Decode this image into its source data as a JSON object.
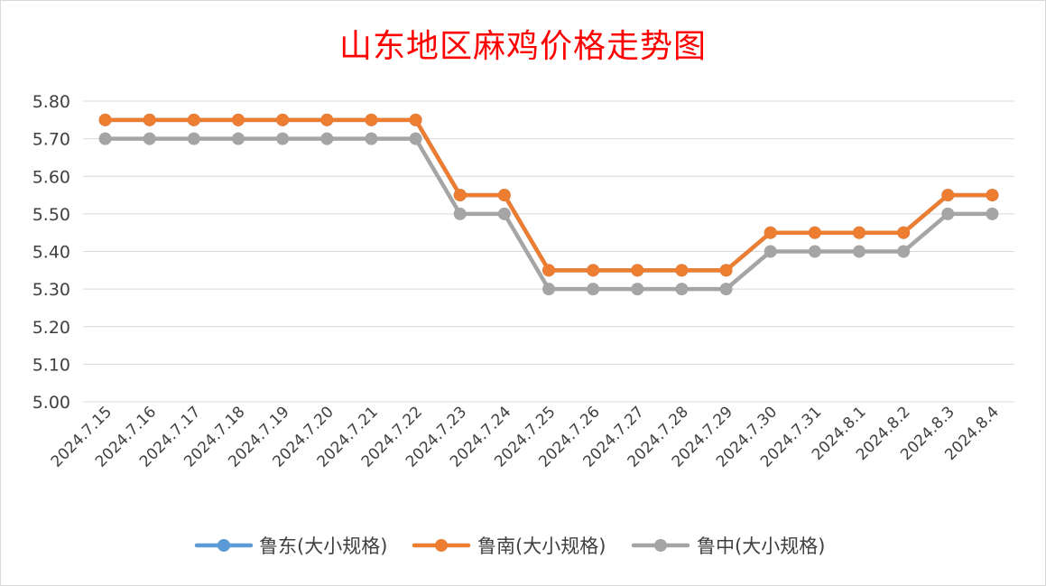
{
  "chart_data": {
    "type": "line",
    "title": "山东地区麻鸡价格走势图",
    "xlabel": "",
    "ylabel": "",
    "ylim": [
      5.0,
      5.8
    ],
    "yticks": [
      "5.80",
      "5.70",
      "5.60",
      "5.50",
      "5.40",
      "5.30",
      "5.20",
      "5.10",
      "5.00"
    ],
    "grid": true,
    "legend_position": "bottom",
    "categories": [
      "2024.7.15",
      "2024.7.16",
      "2024.7.17",
      "2024.7.18",
      "2024.7.19",
      "2024.7.20",
      "2024.7.21",
      "2024.7.22",
      "2024.7.23",
      "2024.7.24",
      "2024.7.25",
      "2024.7.26",
      "2024.7.27",
      "2024.7.28",
      "2024.7.29",
      "2024.7.30",
      "2024.7.31",
      "2024.8.1",
      "2024.8.2",
      "2024.8.3",
      "2024.8.4"
    ],
    "series": [
      {
        "name": "鲁东(大小规格)",
        "color": "#5b9bd5",
        "values": [
          5.75,
          5.75,
          5.75,
          5.75,
          5.75,
          5.75,
          5.75,
          5.75,
          5.55,
          5.55,
          5.35,
          5.35,
          5.35,
          5.35,
          5.35,
          5.45,
          5.45,
          5.45,
          5.45,
          5.55,
          5.55
        ]
      },
      {
        "name": "鲁南(大小规格)",
        "color": "#ed7d31",
        "values": [
          5.75,
          5.75,
          5.75,
          5.75,
          5.75,
          5.75,
          5.75,
          5.75,
          5.55,
          5.55,
          5.35,
          5.35,
          5.35,
          5.35,
          5.35,
          5.45,
          5.45,
          5.45,
          5.45,
          5.55,
          5.55
        ]
      },
      {
        "name": "鲁中(大小规格)",
        "color": "#a5a5a5",
        "values": [
          5.7,
          5.7,
          5.7,
          5.7,
          5.7,
          5.7,
          5.7,
          5.7,
          5.5,
          5.5,
          5.3,
          5.3,
          5.3,
          5.3,
          5.3,
          5.4,
          5.4,
          5.4,
          5.4,
          5.5,
          5.5
        ]
      }
    ]
  }
}
